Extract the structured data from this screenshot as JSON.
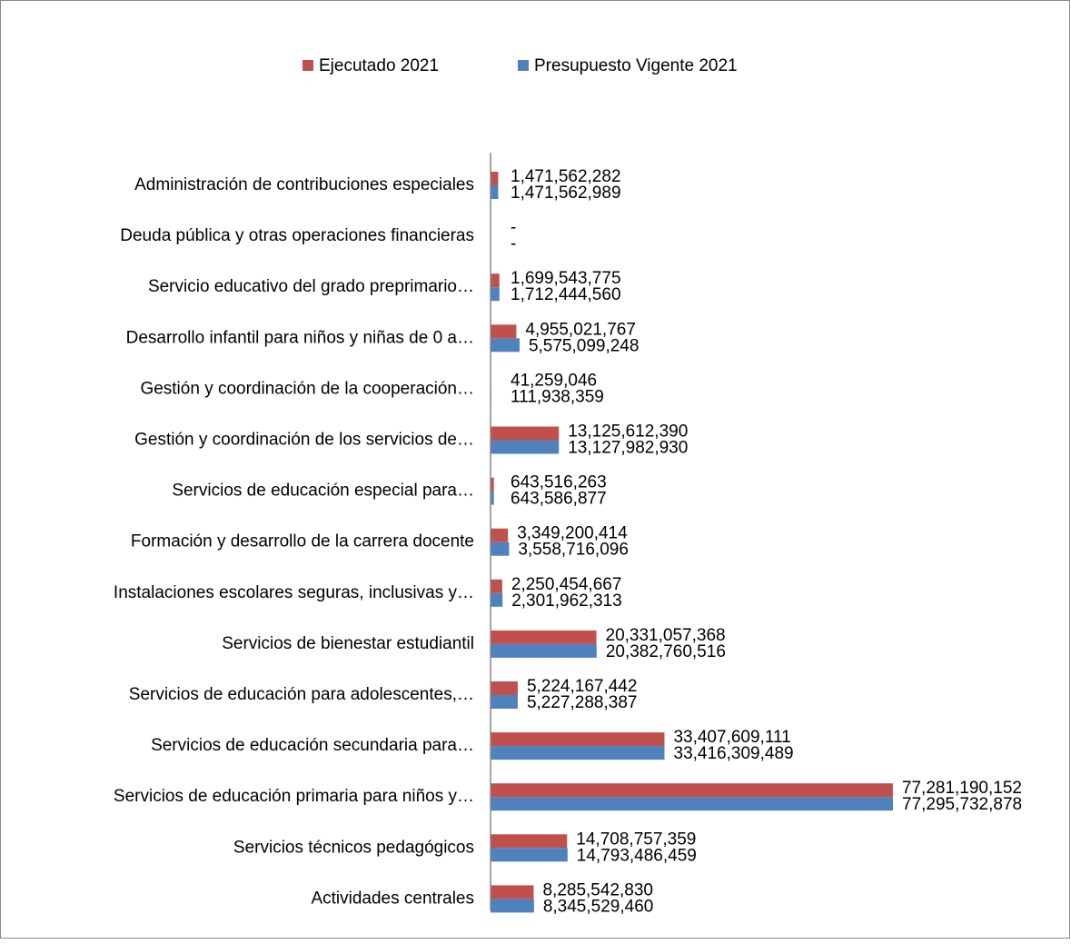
{
  "chart_data": {
    "type": "hbar",
    "categories": [
      "Administración de contribuciones especiales",
      "Deuda pública y otras operaciones financieras",
      "Servicio educativo del grado preprimario…",
      "Desarrollo infantil para niños y niñas de 0 a…",
      "Gestión y coordinación de la cooperación…",
      "Gestión y coordinación de los servicios de…",
      "Servicios de educación especial para…",
      "Formación y desarrollo de la carrera docente",
      "Instalaciones escolares seguras, inclusivas y…",
      "Servicios de bienestar estudiantil",
      "Servicios de educación para adolescentes,…",
      "Servicios de educación secundaria para…",
      "Servicios de educación primaria para niños y…",
      "Servicios técnicos pedagógicos",
      "Actividades centrales"
    ],
    "series": [
      {
        "name": "Ejecutado 2021",
        "color": "#c0504d",
        "values": [
          1471562282,
          0,
          1699543775,
          4955021767,
          41259046,
          13125612390,
          643516263,
          3349200414,
          2250454667,
          20331057368,
          5224167442,
          33407609111,
          77281190152,
          14708757359,
          8285542830
        ],
        "value_labels": [
          "1,471,562,282",
          "-",
          "1,699,543,775",
          "4,955,021,767",
          "41,259,046",
          "13,125,612,390",
          "643,516,263",
          "3,349,200,414",
          "2,250,454,667",
          "20,331,057,368",
          "5,224,167,442",
          "33,407,609,111",
          "77,281,190,152",
          "14,708,757,359",
          "8,285,542,830"
        ]
      },
      {
        "name": "Presupuesto Vigente 2021",
        "color": "#4f81bd",
        "values": [
          1471562989,
          0,
          1712444560,
          5575099248,
          111938359,
          13127982930,
          643586877,
          3558716096,
          2301962313,
          20382760516,
          5227288387,
          33416309489,
          77295732878,
          14793486459,
          8345529460
        ],
        "value_labels": [
          "1,471,562,989",
          "-",
          "1,712,444,560",
          "5,575,099,248",
          "111,938,359",
          "13,127,982,930",
          "643,586,877",
          "3,558,716,096",
          "2,301,962,313",
          "20,382,760,516",
          "5,227,288,387",
          "33,416,309,489",
          "77,295,732,878",
          "14,793,486,459",
          "8,345,529,460"
        ]
      }
    ],
    "legend": "top"
  }
}
